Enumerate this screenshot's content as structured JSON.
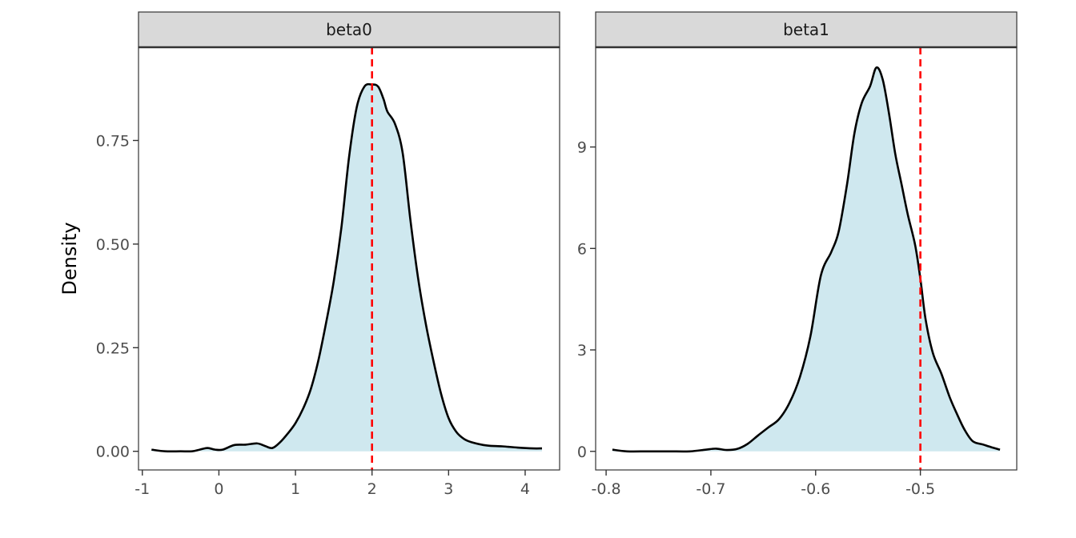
{
  "colors": {
    "fill": "#cfe8ef",
    "line": "#000000",
    "reference_line": "#ff0000",
    "strip_background": "#d9d9d9",
    "panel_border": "#333333",
    "tick_color": "#333333"
  },
  "chart_data": [
    {
      "type": "area",
      "facet": "beta0",
      "ylabel": "Density",
      "xlabel": "",
      "xlim": [
        -1.05,
        4.45
      ],
      "ylim": [
        -0.045,
        0.975
      ],
      "x_ticks": [
        -1,
        0,
        1,
        2,
        3,
        4
      ],
      "x_tick_labels": [
        "-1",
        "0",
        "1",
        "2",
        "3",
        "4"
      ],
      "y_ticks": [
        0,
        0.25,
        0.5,
        0.75
      ],
      "y_tick_labels": [
        "0.00",
        "0.25",
        "0.50",
        "0.75"
      ],
      "reference_line_x": 2,
      "density": {
        "x": [
          -0.88,
          -0.7,
          -0.5,
          -0.35,
          -0.25,
          -0.15,
          -0.05,
          0.05,
          0.2,
          0.35,
          0.5,
          0.6,
          0.7,
          0.8,
          0.9,
          1.0,
          1.1,
          1.2,
          1.3,
          1.4,
          1.5,
          1.6,
          1.7,
          1.8,
          1.9,
          2.0,
          2.08,
          2.15,
          2.2,
          2.3,
          2.4,
          2.5,
          2.6,
          2.7,
          2.8,
          2.9,
          3.0,
          3.1,
          3.2,
          3.3,
          3.5,
          3.7,
          3.9,
          4.1,
          4.22
        ],
        "y": [
          0.004,
          0.0,
          0.0,
          0.0,
          0.004,
          0.008,
          0.004,
          0.004,
          0.015,
          0.016,
          0.019,
          0.013,
          0.008,
          0.022,
          0.043,
          0.068,
          0.103,
          0.15,
          0.22,
          0.31,
          0.41,
          0.54,
          0.71,
          0.83,
          0.88,
          0.885,
          0.88,
          0.85,
          0.82,
          0.79,
          0.72,
          0.56,
          0.42,
          0.31,
          0.22,
          0.14,
          0.08,
          0.047,
          0.03,
          0.022,
          0.014,
          0.012,
          0.009,
          0.007,
          0.007
        ]
      }
    },
    {
      "type": "area",
      "facet": "beta1",
      "ylabel": "",
      "xlabel": "",
      "xlim": [
        -0.81,
        -0.408
      ],
      "ylim": [
        -0.55,
        11.95
      ],
      "x_ticks": [
        -0.8,
        -0.7,
        -0.6,
        -0.5
      ],
      "x_tick_labels": [
        "-0.8",
        "-0.7",
        "-0.6",
        "-0.5"
      ],
      "y_ticks": [
        0,
        3,
        6,
        9
      ],
      "y_tick_labels": [
        "0",
        "3",
        "6",
        "9"
      ],
      "reference_line_x": -0.5,
      "density": {
        "x": [
          -0.794,
          -0.78,
          -0.76,
          -0.74,
          -0.72,
          -0.705,
          -0.695,
          -0.685,
          -0.675,
          -0.665,
          -0.655,
          -0.645,
          -0.635,
          -0.625,
          -0.615,
          -0.605,
          -0.595,
          -0.585,
          -0.578,
          -0.57,
          -0.563,
          -0.556,
          -0.548,
          -0.542,
          -0.536,
          -0.53,
          -0.524,
          -0.518,
          -0.512,
          -0.505,
          -0.5,
          -0.495,
          -0.488,
          -0.48,
          -0.472,
          -0.465,
          -0.458,
          -0.45,
          -0.44,
          -0.432,
          -0.424
        ],
        "y": [
          0.05,
          0.0,
          0.0,
          0.0,
          0.0,
          0.05,
          0.08,
          0.04,
          0.07,
          0.22,
          0.47,
          0.71,
          0.95,
          1.43,
          2.2,
          3.4,
          5.2,
          5.9,
          6.5,
          7.9,
          9.4,
          10.3,
          10.8,
          11.35,
          11.0,
          10.0,
          8.8,
          7.9,
          7.0,
          6.1,
          5.1,
          3.9,
          2.9,
          2.3,
          1.6,
          1.1,
          0.65,
          0.3,
          0.2,
          0.12,
          0.05
        ]
      }
    }
  ]
}
